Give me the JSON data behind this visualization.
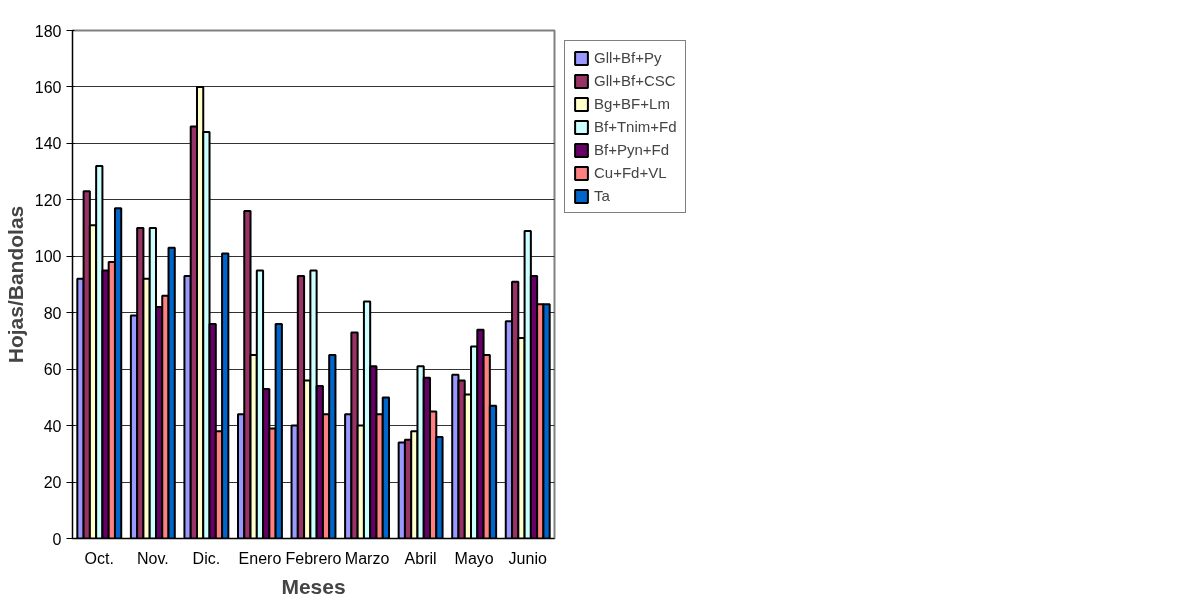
{
  "chart_data": {
    "type": "bar",
    "xlabel": "Meses",
    "ylabel": "Hojas/Bandolas",
    "categories": [
      "Oct.",
      "Nov.",
      "Dic.",
      "Enero",
      "Febrero",
      "Marzo",
      "Abril",
      "Mayo",
      "Junio"
    ],
    "series": [
      {
        "name": "Gll+Bf+Py",
        "color": "#9999ff",
        "values": [
          92,
          79,
          93,
          44,
          40,
          44,
          34,
          58,
          77
        ]
      },
      {
        "name": "Gll+Bf+CSC",
        "color": "#993366",
        "values": [
          123,
          110,
          146,
          116,
          93,
          73,
          35,
          56,
          91
        ]
      },
      {
        "name": "Bg+BF+Lm",
        "color": "#ffffcc",
        "values": [
          111,
          92,
          160,
          65,
          56,
          40,
          38,
          51,
          71
        ]
      },
      {
        "name": "Bf+Tnim+Fd",
        "color": "#ccffff",
        "values": [
          132,
          110,
          144,
          95,
          95,
          84,
          61,
          68,
          109
        ]
      },
      {
        "name": "Bf+Pyn+Fd",
        "color": "#660066",
        "values": [
          95,
          82,
          76,
          53,
          54,
          61,
          57,
          74,
          93
        ]
      },
      {
        "name": "Cu+Fd+VL",
        "color": "#ff8080",
        "values": [
          98,
          86,
          38,
          39,
          44,
          44,
          45,
          65,
          83
        ]
      },
      {
        "name": "Ta",
        "color": "#0066cc",
        "values": [
          117,
          103,
          101,
          76,
          65,
          50,
          36,
          47,
          83
        ]
      }
    ],
    "ylim": [
      0,
      180
    ],
    "yticks": [
      0,
      20,
      40,
      60,
      80,
      100,
      120,
      140,
      160,
      180
    ],
    "grid": "y",
    "legend": "top right"
  }
}
